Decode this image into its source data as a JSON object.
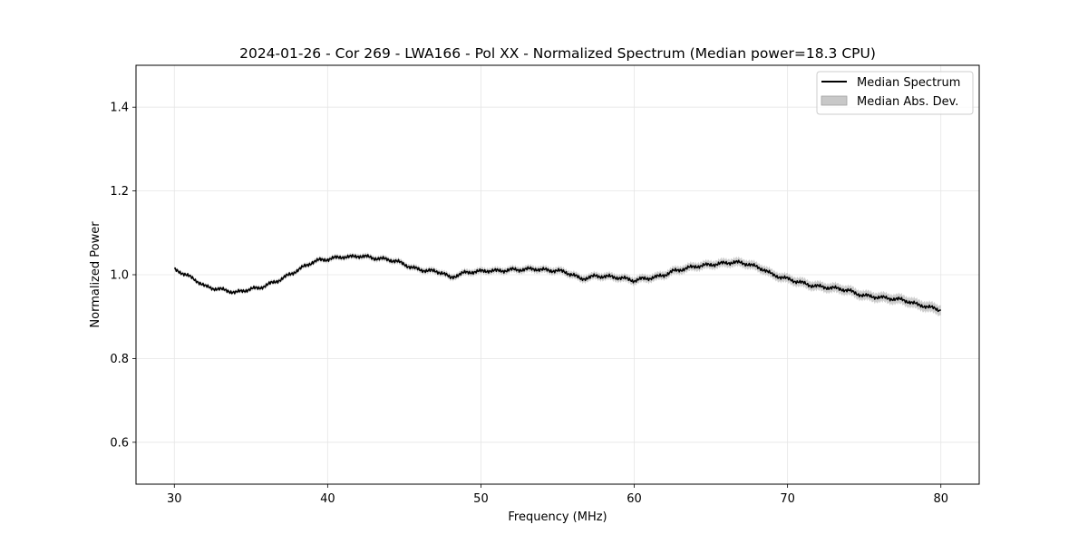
{
  "chart_data": {
    "type": "line",
    "title": "2024-01-26 - Cor 269 - LWA166 - Pol XX - Normalized Spectrum (Median power=18.3 CPU)",
    "xlabel": "Frequency (MHz)",
    "ylabel": "Normalized Power",
    "xlim": [
      27.5,
      82.5
    ],
    "ylim": [
      0.5,
      1.5
    ],
    "xticks": [
      30,
      40,
      50,
      60,
      70,
      80
    ],
    "yticks": [
      0.6,
      0.8,
      1.0,
      1.2,
      1.4
    ],
    "xtick_labels": [
      "30",
      "40",
      "50",
      "60",
      "70",
      "80"
    ],
    "ytick_labels": [
      "0.6",
      "0.8",
      "1.0",
      "1.2",
      "1.4"
    ],
    "grid": true,
    "legend_position": "top-right",
    "series": [
      {
        "name": "Median Spectrum",
        "color": "#000000",
        "x": [
          30.0,
          30.5,
          31.0,
          31.5,
          32.0,
          32.5,
          33.0,
          33.5,
          34.0,
          34.5,
          35.0,
          35.5,
          36.0,
          36.5,
          37.0,
          37.5,
          38.0,
          38.5,
          39.0,
          39.5,
          40.0,
          40.5,
          41.0,
          41.5,
          42.0,
          42.5,
          43.0,
          43.5,
          44.0,
          44.5,
          45.0,
          45.5,
          46.0,
          46.5,
          47.0,
          47.5,
          48.0,
          48.5,
          49.0,
          49.5,
          50.0,
          50.5,
          51.0,
          51.5,
          52.0,
          52.5,
          53.0,
          53.5,
          54.0,
          54.5,
          55.0,
          55.5,
          56.0,
          56.5,
          57.0,
          57.5,
          58.0,
          58.5,
          59.0,
          59.5,
          60.0,
          60.5,
          61.0,
          61.5,
          62.0,
          62.5,
          63.0,
          63.5,
          64.0,
          64.5,
          65.0,
          65.5,
          66.0,
          66.5,
          67.0,
          67.5,
          68.0,
          68.5,
          69.0,
          69.5,
          70.0,
          70.5,
          71.0,
          71.5,
          72.0,
          72.5,
          73.0,
          73.5,
          74.0,
          74.5,
          75.0,
          75.5,
          76.0,
          76.5,
          77.0,
          77.5,
          78.0,
          78.5,
          79.0,
          79.5,
          80.0
        ],
        "values": [
          1.012,
          1.005,
          0.995,
          0.985,
          0.972,
          0.968,
          0.965,
          0.962,
          0.957,
          0.962,
          0.966,
          0.968,
          0.975,
          0.982,
          0.99,
          1.0,
          1.01,
          1.02,
          1.03,
          1.035,
          1.037,
          1.04,
          1.043,
          1.042,
          1.045,
          1.043,
          1.04,
          1.038,
          1.036,
          1.032,
          1.025,
          1.017,
          1.012,
          1.01,
          1.008,
          1.005,
          0.992,
          1.0,
          1.005,
          1.007,
          1.008,
          1.01,
          1.009,
          1.01,
          1.012,
          1.012,
          1.013,
          1.014,
          1.012,
          1.01,
          1.01,
          1.006,
          1.0,
          0.99,
          0.993,
          0.997,
          0.996,
          0.995,
          0.993,
          0.99,
          0.986,
          0.99,
          0.992,
          0.995,
          1.0,
          1.008,
          1.012,
          1.016,
          1.02,
          1.022,
          1.024,
          1.026,
          1.028,
          1.03,
          1.028,
          1.025,
          1.018,
          1.012,
          1.0,
          0.995,
          0.99,
          0.985,
          0.98,
          0.975,
          0.972,
          0.97,
          0.968,
          0.966,
          0.962,
          0.955,
          0.95,
          0.948,
          0.946,
          0.944,
          0.942,
          0.94,
          0.935,
          0.928,
          0.925,
          0.92,
          0.915
        ]
      },
      {
        "name": "Median Abs. Dev.",
        "color": "#c8c8c8",
        "type": "band",
        "x_range": [
          30,
          80
        ],
        "mad_start": 0.004,
        "mad_end": 0.012
      }
    ]
  }
}
